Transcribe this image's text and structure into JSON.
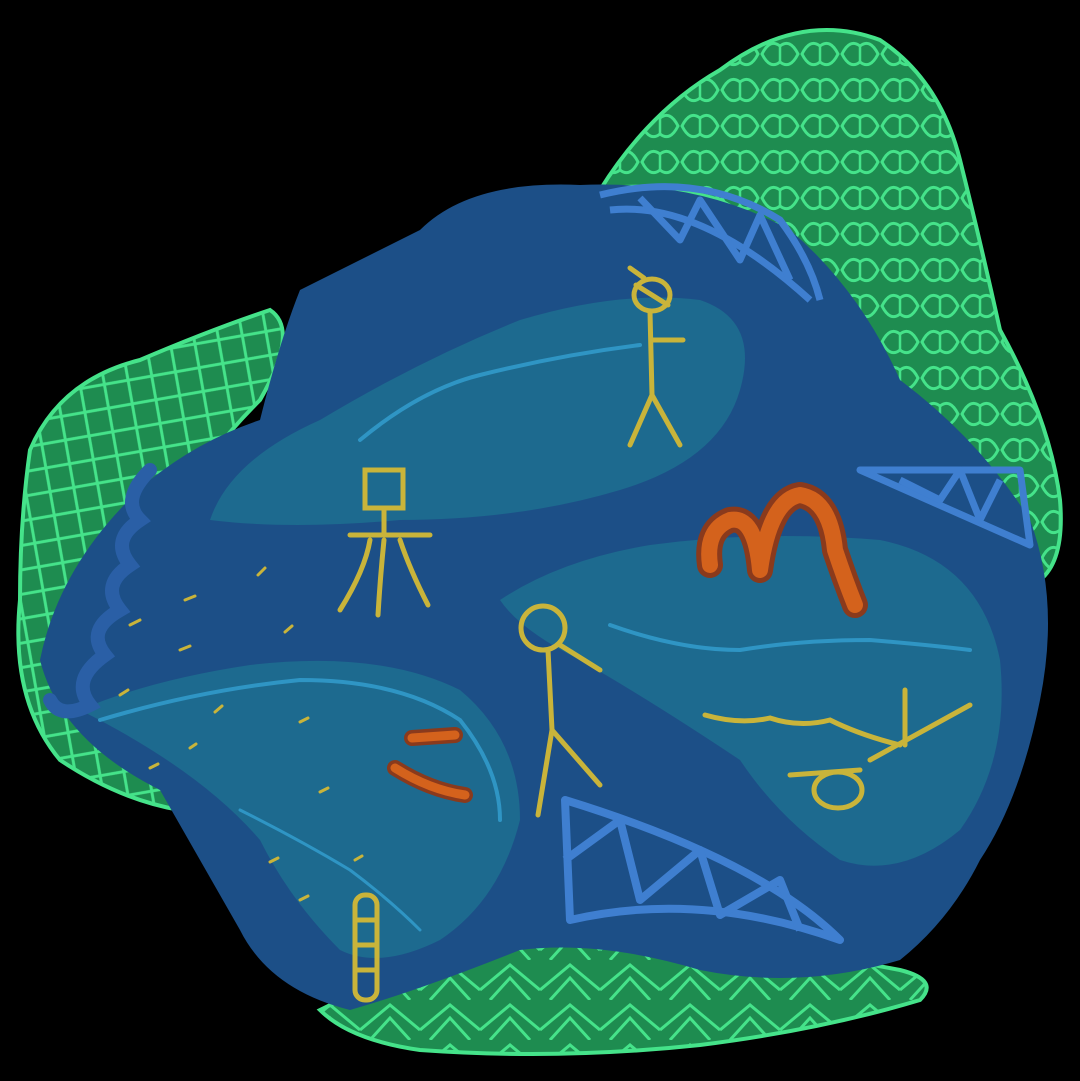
{
  "illustration": {
    "colors": {
      "background": "#000000",
      "deep_water": "#1c4f87",
      "shallow_water": "#1d6a8f",
      "current_line": "#2f95c4",
      "moss_fill": "#1e8c50",
      "moss_line": "#45e38a",
      "bridge_fill": "#2a5fa6",
      "bridge_line": "#3f7fd0",
      "figure_yellow": "#c9b43a",
      "glyph_orange": "#d4621c",
      "glyph_dark": "#8a3a1c"
    },
    "icons": [
      "stick-figure-standing",
      "stick-figure-swimming",
      "stick-figure-floating",
      "easel-tripod",
      "letter-m-glyph",
      "raft-ladder",
      "truss-bridge"
    ]
  }
}
